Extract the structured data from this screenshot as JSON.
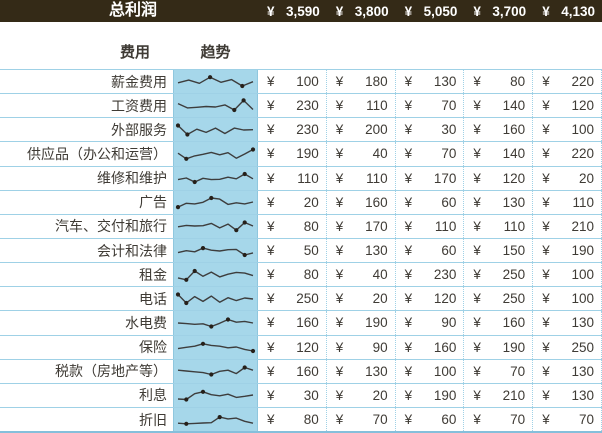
{
  "currency_symbol": "¥",
  "colors": {
    "bar_bg": "#342a17",
    "bar_text": "#ffffff",
    "cell_blue": "#a6d7ea",
    "border_blue_dotted": "#9fd1e6",
    "border_blue_solid": "#8fc7de",
    "bottom_border_blue": "#85bfdb",
    "text": "#3f3b35",
    "spark_line": "#3d3d3d",
    "spark_marker": "#26201a"
  },
  "title_bar": {
    "label": "总利润",
    "values": [
      "3,590",
      "3,800",
      "5,050",
      "3,700",
      "4,130"
    ]
  },
  "table": {
    "headers": {
      "expense": "费用",
      "trend": "趋势"
    },
    "rows": [
      {
        "label": "薪金费用",
        "values": [
          "100",
          "180",
          "130",
          "80",
          "220"
        ],
        "spark": [
          45,
          62,
          42,
          80,
          48,
          65,
          25,
          52
        ]
      },
      {
        "label": "工资费用",
        "values": [
          "230",
          "110",
          "70",
          "140",
          "120"
        ],
        "spark": [
          65,
          38,
          42,
          47,
          44,
          57,
          25,
          85,
          28
        ]
      },
      {
        "label": "外部服务",
        "values": [
          "230",
          "200",
          "30",
          "160",
          "100"
        ],
        "spark": [
          78,
          22,
          55,
          35,
          62,
          28,
          62,
          50,
          52
        ]
      },
      {
        "label": "供应品（办公和运营）",
        "values": [
          "190",
          "40",
          "70",
          "140",
          "220"
        ],
        "spark": [
          55,
          20,
          38,
          48,
          60,
          45,
          58,
          24,
          50,
          78
        ]
      },
      {
        "label": "维修和维护",
        "values": [
          "110",
          "110",
          "170",
          "120",
          "20"
        ],
        "spark": [
          40,
          50,
          25,
          48,
          40,
          42,
          55,
          45,
          75,
          45
        ]
      },
      {
        "label": "广告",
        "values": [
          "20",
          "160",
          "60",
          "130",
          "110"
        ],
        "spark": [
          18,
          42,
          38,
          48,
          75,
          68,
          35,
          45,
          38,
          50
        ]
      },
      {
        "label": "汽车、交付和旅行",
        "values": [
          "80",
          "170",
          "110",
          "110",
          "210"
        ],
        "spark": [
          45,
          54,
          50,
          52,
          66,
          38,
          62,
          24,
          72,
          50
        ]
      },
      {
        "label": "会计和法律",
        "values": [
          "50",
          "130",
          "60",
          "150",
          "190"
        ],
        "spark": [
          40,
          52,
          45,
          68,
          55,
          50,
          58,
          60,
          25,
          38
        ]
      },
      {
        "label": "租金",
        "values": [
          "80",
          "40",
          "230",
          "250",
          "100"
        ],
        "spark": [
          32,
          20,
          75,
          42,
          68,
          38,
          55,
          66,
          62,
          46
        ]
      },
      {
        "label": "电话",
        "values": [
          "250",
          "20",
          "120",
          "250",
          "100"
        ],
        "spark": [
          78,
          25,
          65,
          35,
          68,
          30,
          58,
          40,
          56,
          50
        ]
      },
      {
        "label": "水电费",
        "values": [
          "160",
          "190",
          "90",
          "160",
          "130"
        ],
        "spark": [
          50,
          46,
          42,
          45,
          28,
          48,
          72,
          55,
          60,
          50
        ]
      },
      {
        "label": "保险",
        "values": [
          "120",
          "90",
          "160",
          "190",
          "250"
        ],
        "spark": [
          40,
          48,
          55,
          70,
          60,
          55,
          45,
          50,
          35,
          25
        ]
      },
      {
        "label": "税款（房地产等）",
        "values": [
          "160",
          "130",
          "100",
          "70",
          "130"
        ],
        "spark": [
          55,
          50,
          45,
          40,
          28,
          48,
          55,
          34,
          72,
          55
        ]
      },
      {
        "label": "利息",
        "values": [
          "30",
          "20",
          "190",
          "210",
          "130"
        ],
        "spark": [
          25,
          22,
          58,
          70,
          52,
          45,
          55,
          35,
          42,
          50
        ]
      },
      {
        "label": "折旧",
        "values": [
          "80",
          "70",
          "60",
          "70",
          "70"
        ],
        "spark": [
          30,
          26,
          29,
          31,
          33,
          68,
          57,
          62,
          42,
          30
        ]
      }
    ]
  },
  "chart_data": {
    "type": "line",
    "title": "趋势 sparklines (one per expense row, normalized 0-100, markers on high/low points)",
    "series_key": "table.rows[].spark"
  }
}
